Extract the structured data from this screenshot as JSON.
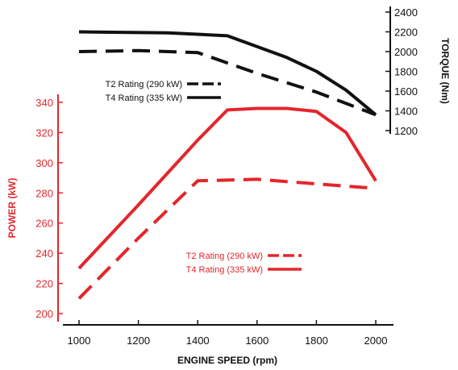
{
  "chart_data": {
    "type": "line",
    "xlabel": "ENGINE SPEED (rpm)",
    "x_ticks": [
      1000,
      1200,
      1400,
      1600,
      1800,
      2000
    ],
    "xlim": [
      1000,
      2000
    ],
    "power_axis": {
      "label": "POWER (kW)",
      "ticks": [
        200,
        220,
        240,
        260,
        280,
        300,
        320,
        340
      ],
      "ylim": [
        200,
        340
      ],
      "color": "#e3262b"
    },
    "torque_axis": {
      "label": "TORQUE (Nm)",
      "ticks": [
        1200,
        1400,
        1600,
        1800,
        2000,
        2200,
        2400
      ],
      "ylim": [
        1200,
        2400
      ],
      "color": "#111111"
    },
    "series": [
      {
        "name": "T4 Rating (335 kW)",
        "group": "torque",
        "style": "solid",
        "color": "#111111",
        "x": [
          1000,
          1300,
          1500,
          1700,
          1800,
          1900,
          2000
        ],
        "y": [
          2200,
          2190,
          2160,
          1940,
          1800,
          1610,
          1360
        ]
      },
      {
        "name": "T2 Rating (290 kW)",
        "group": "torque",
        "style": "dashed",
        "color": "#111111",
        "x": [
          1000,
          1200,
          1400,
          1600,
          1800,
          2000
        ],
        "y": [
          2000,
          2010,
          1990,
          1780,
          1590,
          1360
        ]
      },
      {
        "name": "T4 Rating (335 kW)",
        "group": "power",
        "style": "solid",
        "color": "#e3262b",
        "x": [
          1000,
          1200,
          1400,
          1500,
          1600,
          1700,
          1800,
          1900,
          2000
        ],
        "y": [
          230,
          272,
          315,
          335,
          336,
          336,
          334,
          320,
          288
        ]
      },
      {
        "name": "T2 Rating (290 kW)",
        "group": "power",
        "style": "dashed",
        "color": "#e3262b",
        "x": [
          1000,
          1200,
          1400,
          1600,
          1800,
          2000
        ],
        "y": [
          210,
          250,
          288,
          289,
          286,
          283
        ]
      }
    ],
    "legends": [
      {
        "group": "torque",
        "color": "#111111",
        "items": [
          {
            "label": "T2 Rating (290 kW)",
            "style": "dashed"
          },
          {
            "label": "T4 Rating (335 kW)",
            "style": "solid"
          }
        ]
      },
      {
        "group": "power",
        "color": "#e3262b",
        "items": [
          {
            "label": "T2 Rating (290 kW)",
            "style": "dashed"
          },
          {
            "label": "T4 Rating (335 kW)",
            "style": "solid"
          }
        ]
      }
    ],
    "grid": false
  }
}
